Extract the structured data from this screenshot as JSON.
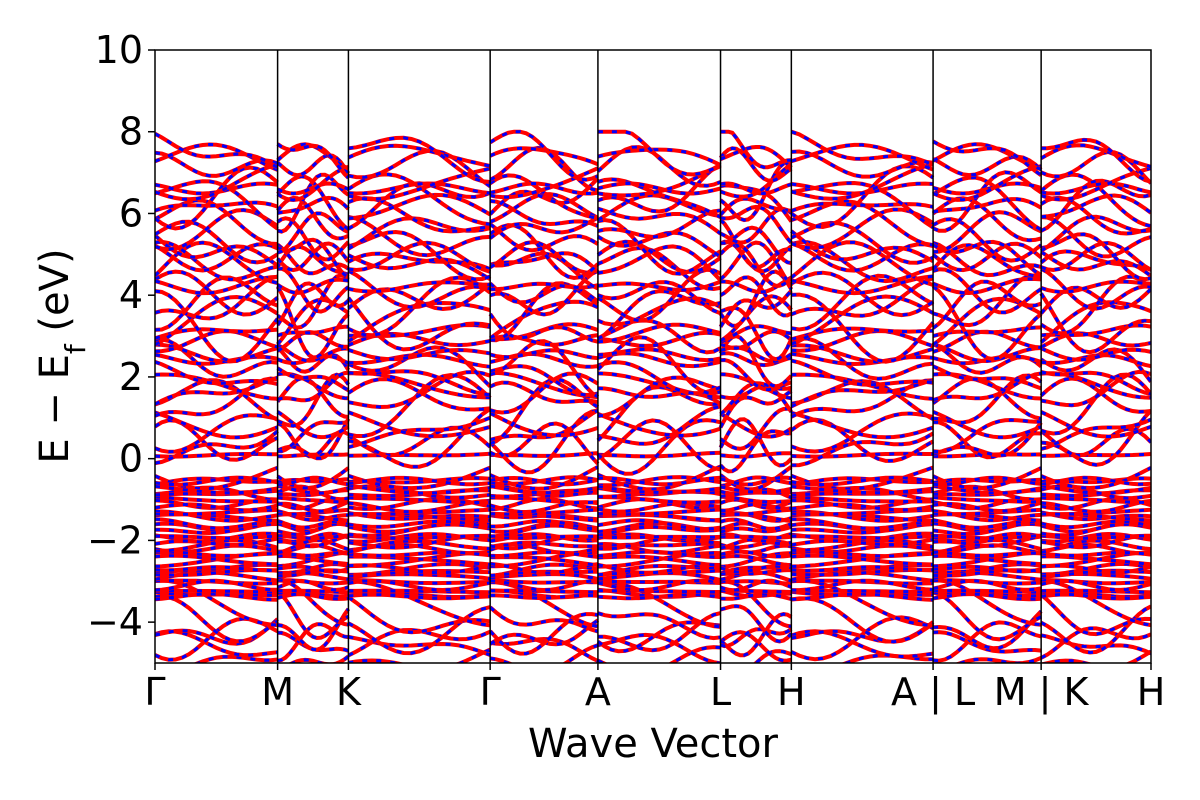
{
  "chart_data": {
    "type": "line",
    "title": "",
    "xlabel": "Wave Vector",
    "ylabel": "E − E",
    "ylabel_subscript": "f",
    "ylabel_suffix": " (eV)",
    "ylim": [
      -5,
      10
    ],
    "y_ticks": [
      {
        "value": 10,
        "label": "10"
      },
      {
        "value": 8,
        "label": "8"
      },
      {
        "value": 6,
        "label": "6"
      },
      {
        "value": 4,
        "label": "4"
      },
      {
        "value": 2,
        "label": "2"
      },
      {
        "value": 0,
        "label": "0"
      },
      {
        "value": -2,
        "label": "−2"
      },
      {
        "value": -4,
        "label": "−4"
      }
    ],
    "k_path": [
      "Γ",
      "M",
      "K",
      "Γ",
      "A",
      "L",
      "H",
      "A | L",
      "M | K",
      "H"
    ],
    "k_positions": [
      0,
      1.231,
      1.942,
      3.365,
      4.447,
      5.678,
      6.389,
      7.812,
      8.897,
      10
    ],
    "x_tick_labels": [
      "Γ",
      "M",
      "K",
      "Γ",
      "A",
      "L",
      "H",
      "A | L",
      "M | K",
      "H"
    ],
    "series_colors": {
      "spin_up": "#ff0000",
      "spin_down": "#0000ff"
    },
    "line_style": {
      "spin_up": "solid",
      "spin_down": "dashed"
    },
    "bands_shown": "many overlapping bands spanning −5 to 8 eV; dense manifold between −3.5 and −0.5 eV; gap near 0 eV"
  }
}
